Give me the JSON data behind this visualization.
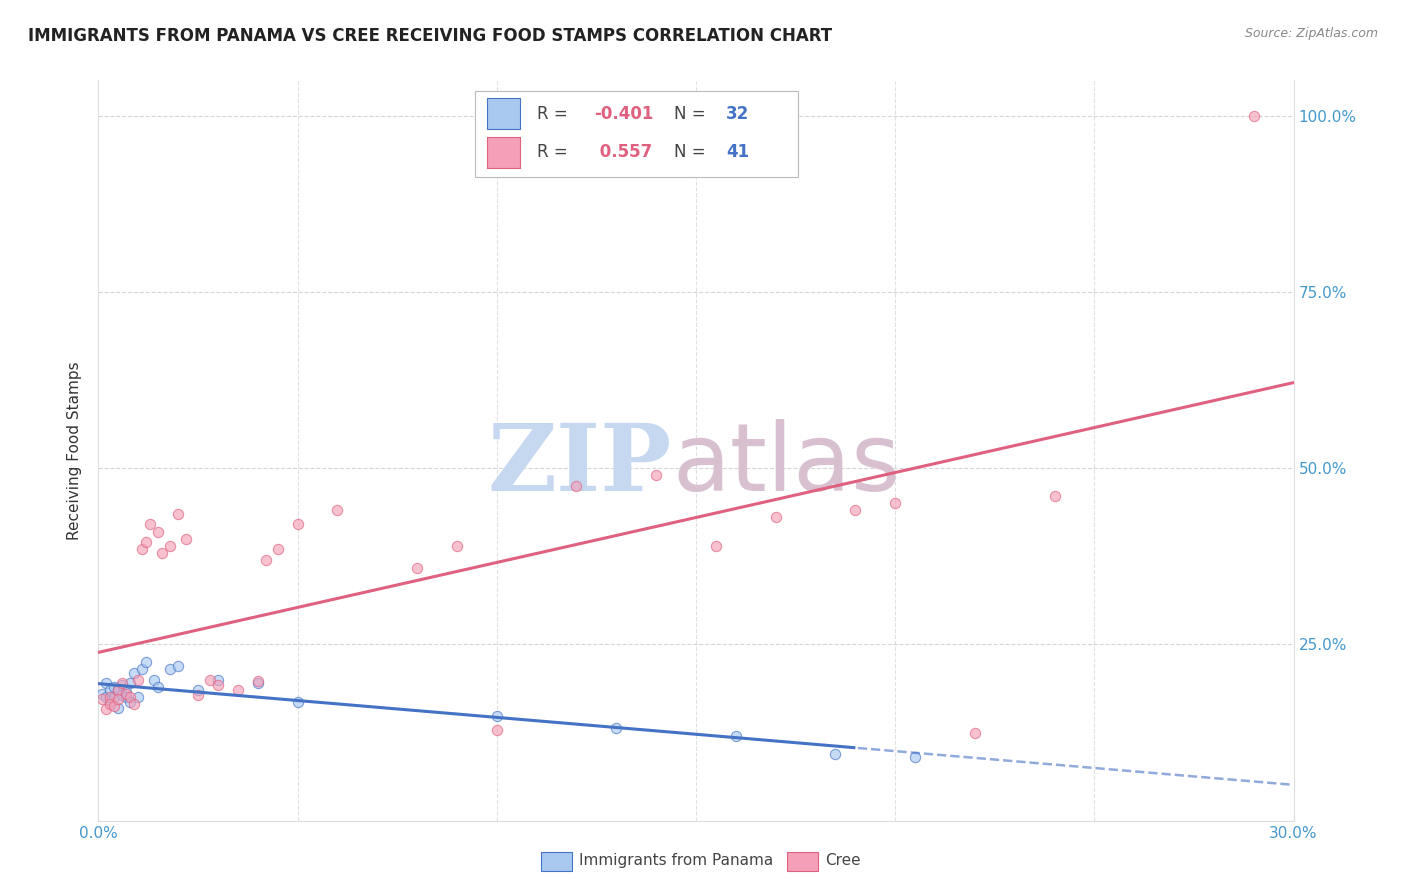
{
  "title": "IMMIGRANTS FROM PANAMA VS CREE RECEIVING FOOD STAMPS CORRELATION CHART",
  "source": "Source: ZipAtlas.com",
  "ylabel": "Receiving Food Stamps",
  "legend_label1": "Immigrants from Panama",
  "legend_label2": "Cree",
  "r1": -0.401,
  "n1": 32,
  "r2": 0.557,
  "n2": 41,
  "xmin": 0.0,
  "xmax": 0.3,
  "ymin": 0.0,
  "ymax": 1.05,
  "color_blue": "#A8C8F0",
  "color_pink": "#F4A0B8",
  "line_blue": "#4472C4",
  "line_pink": "#E06080",
  "wm_zip_color": "#C5D8F0",
  "wm_atlas_color": "#D8C0D0",
  "blue_x": [
    0.001,
    0.002,
    0.002,
    0.003,
    0.003,
    0.004,
    0.004,
    0.005,
    0.005,
    0.006,
    0.006,
    0.007,
    0.007,
    0.008,
    0.008,
    0.009,
    0.01,
    0.011,
    0.012,
    0.014,
    0.015,
    0.018,
    0.02,
    0.025,
    0.03,
    0.04,
    0.05,
    0.1,
    0.13,
    0.16,
    0.185,
    0.205
  ],
  "blue_y": [
    0.18,
    0.175,
    0.195,
    0.185,
    0.17,
    0.19,
    0.175,
    0.16,
    0.185,
    0.178,
    0.192,
    0.182,
    0.175,
    0.168,
    0.195,
    0.21,
    0.175,
    0.215,
    0.225,
    0.2,
    0.19,
    0.215,
    0.22,
    0.185,
    0.2,
    0.195,
    0.168,
    0.148,
    0.132,
    0.12,
    0.095,
    0.09
  ],
  "pink_x": [
    0.001,
    0.002,
    0.003,
    0.003,
    0.004,
    0.005,
    0.005,
    0.006,
    0.007,
    0.008,
    0.009,
    0.01,
    0.011,
    0.012,
    0.013,
    0.015,
    0.016,
    0.018,
    0.02,
    0.022,
    0.025,
    0.028,
    0.03,
    0.035,
    0.04,
    0.042,
    0.045,
    0.05,
    0.06,
    0.08,
    0.09,
    0.1,
    0.12,
    0.14,
    0.155,
    0.17,
    0.19,
    0.2,
    0.22,
    0.24,
    0.29
  ],
  "pink_y": [
    0.172,
    0.158,
    0.175,
    0.165,
    0.162,
    0.185,
    0.172,
    0.195,
    0.18,
    0.175,
    0.165,
    0.2,
    0.385,
    0.395,
    0.42,
    0.41,
    0.38,
    0.39,
    0.435,
    0.4,
    0.178,
    0.2,
    0.192,
    0.185,
    0.198,
    0.37,
    0.385,
    0.42,
    0.44,
    0.358,
    0.39,
    0.128,
    0.475,
    0.49,
    0.39,
    0.43,
    0.44,
    0.45,
    0.125,
    0.46,
    1.0
  ]
}
